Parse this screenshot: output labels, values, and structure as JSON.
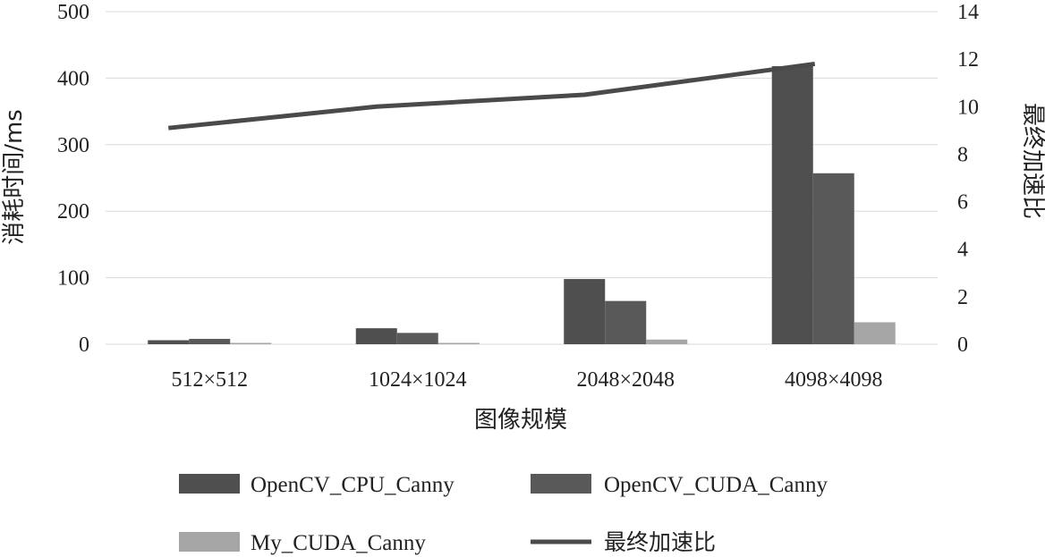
{
  "chart_data": {
    "type": "bar",
    "categories": [
      "512×512",
      "1024×1024",
      "2048×2048",
      "4098×4098"
    ],
    "series": [
      {
        "name": "OpenCV_CPU_Canny",
        "axis": "left",
        "type": "bar",
        "color": "#4f4f4f",
        "values": [
          6,
          24,
          98,
          418
        ]
      },
      {
        "name": "OpenCV_CUDA_Canny",
        "axis": "left",
        "type": "bar",
        "color": "#595959",
        "values": [
          8,
          17,
          65,
          257
        ]
      },
      {
        "name": "My_CUDA_Canny",
        "axis": "left",
        "type": "bar",
        "color": "#a6a6a6",
        "values": [
          2,
          2,
          7,
          33
        ]
      },
      {
        "name": "最终加速比",
        "axis": "right",
        "type": "line",
        "color": "#4a4a4a",
        "values": [
          9.1,
          10.0,
          10.5,
          11.8
        ]
      }
    ],
    "xlabel": "图像规模",
    "ylabel": "消耗时间/ms",
    "y2label": "最终加速比",
    "ylim": [
      0,
      500
    ],
    "y2lim": [
      0,
      14
    ],
    "yticks": [
      0,
      100,
      200,
      300,
      400,
      500
    ],
    "y2ticks": [
      0,
      2,
      4,
      6,
      8,
      10,
      12,
      14
    ],
    "grid": true,
    "legend": "bottom"
  }
}
